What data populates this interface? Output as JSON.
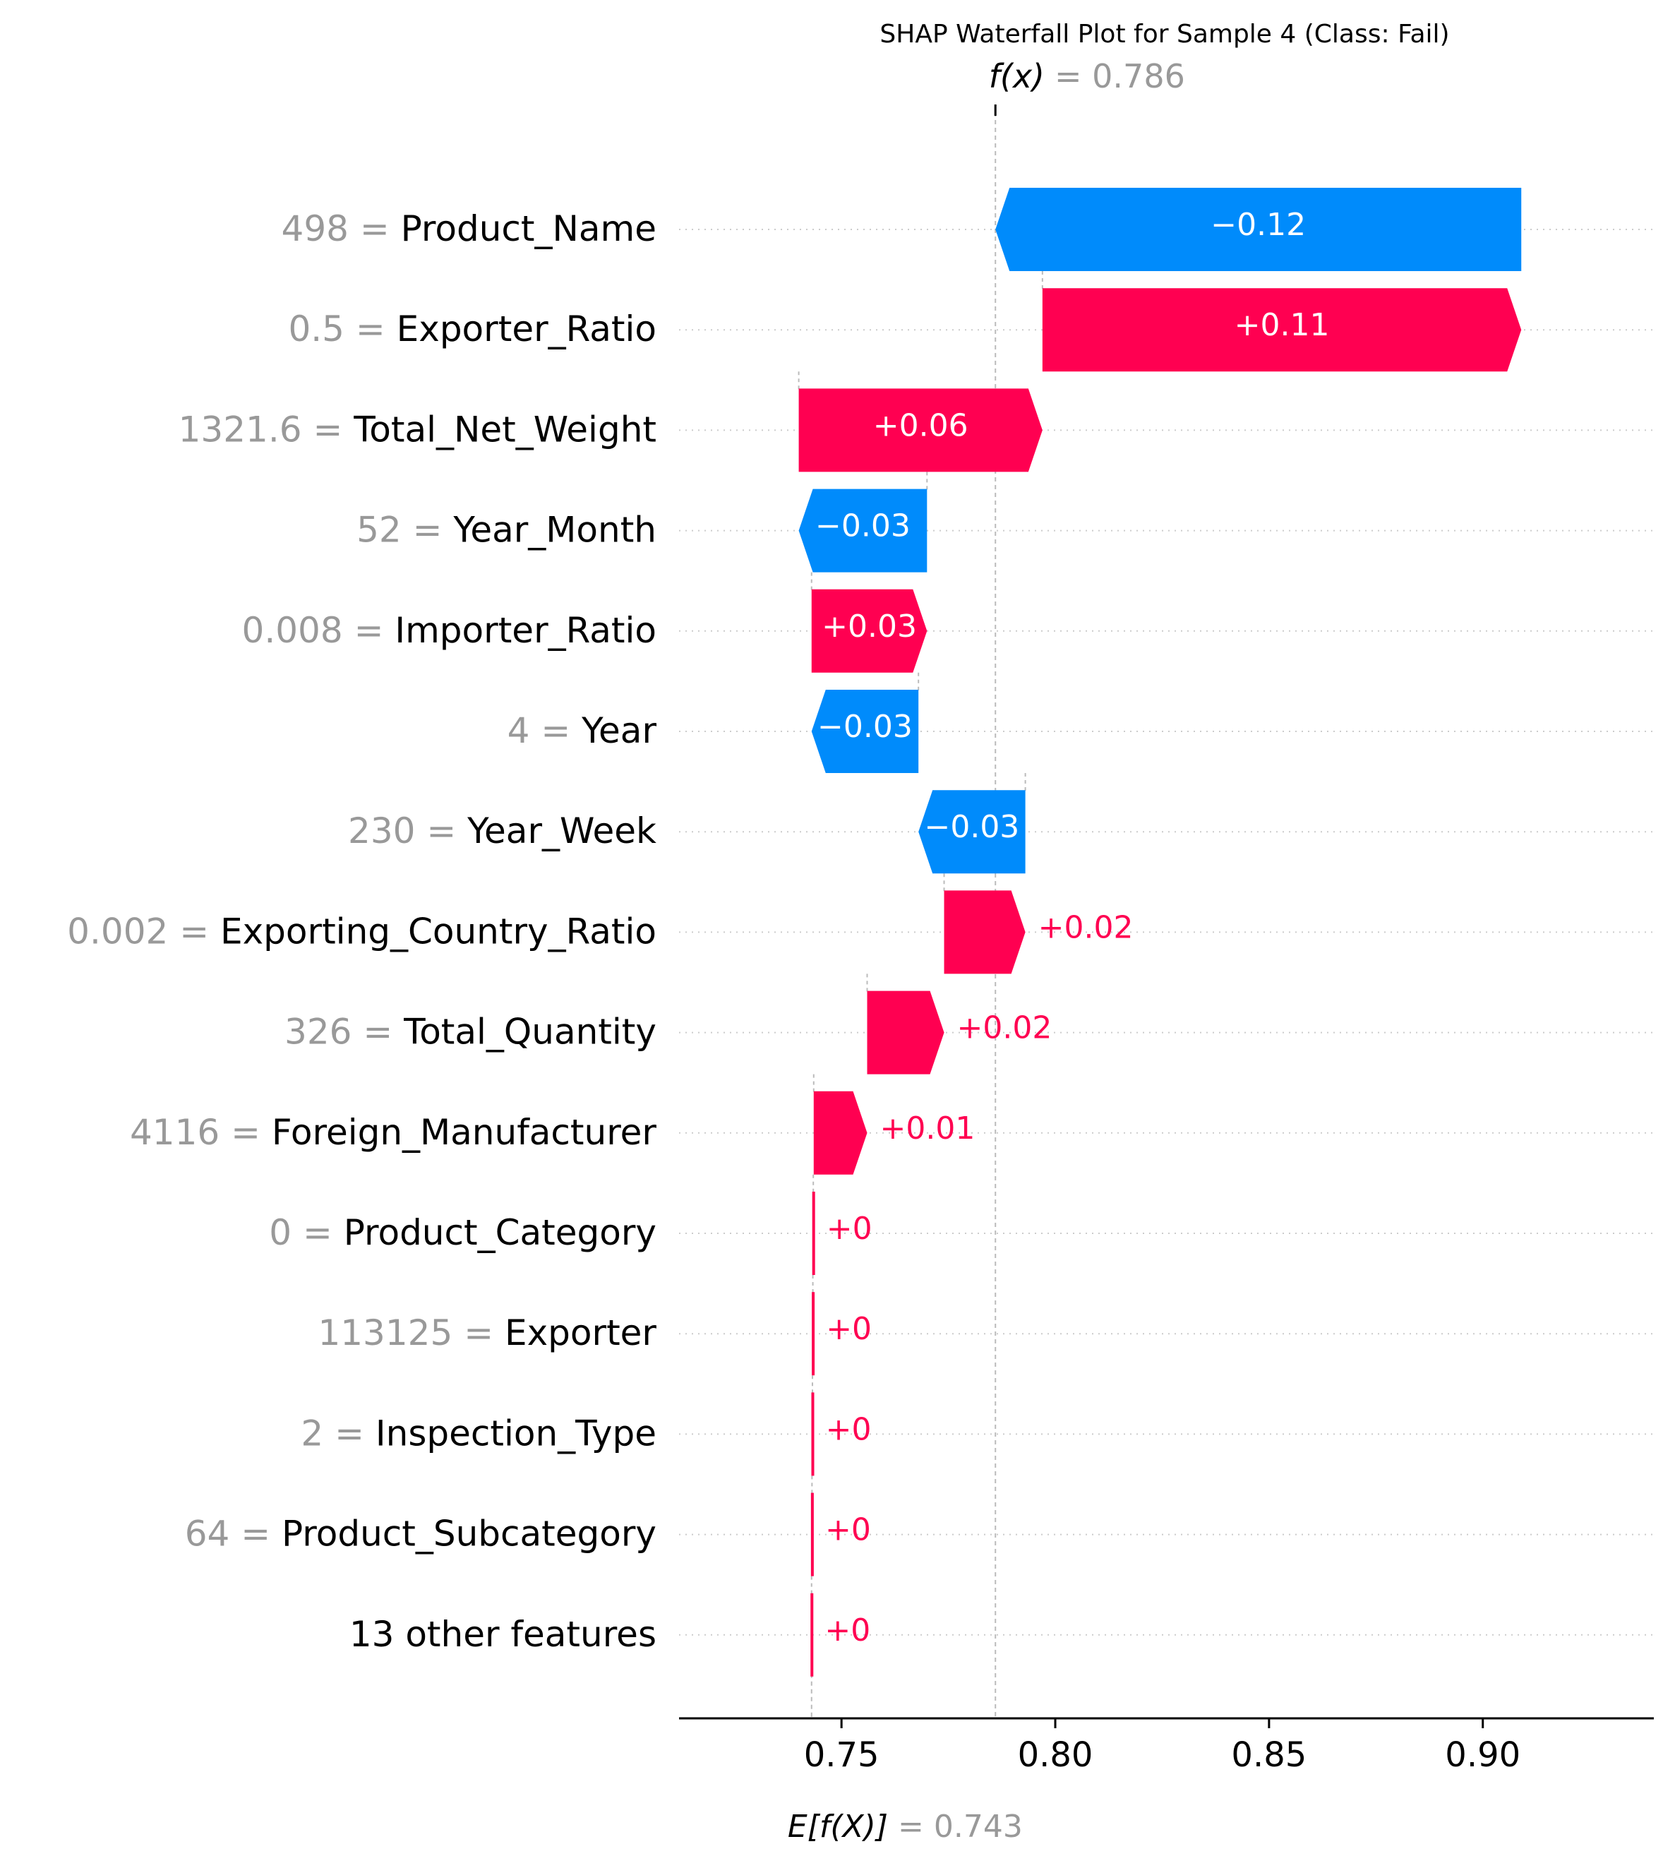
{
  "chart_data": {
    "type": "waterfall",
    "title": "SHAP Waterfall Plot for Sample 4 (Class: Fail)",
    "fx_label": "f(x)",
    "fx_value": "= 0.786",
    "fx": 0.786,
    "efx_label": "E[f(X)]",
    "efx_value": "= 0.743",
    "base_value": 0.743,
    "xlim": [
      0.712,
      0.94
    ],
    "xticks": [
      0.75,
      0.8,
      0.85,
      0.9
    ],
    "xtick_labels": [
      "0.75",
      "0.80",
      "0.85",
      "0.90"
    ],
    "colors": {
      "positive": "#ff0051",
      "negative": "#008bfb",
      "value_text": "#999999",
      "label_text": "#000000"
    },
    "features": [
      {
        "value": "498",
        "name": "Product_Name",
        "start": 0.909,
        "end": 0.786,
        "text": "−0.12"
      },
      {
        "value": "0.5",
        "name": "Exporter_Ratio",
        "start": 0.797,
        "end": 0.909,
        "text": "+0.11"
      },
      {
        "value": "1321.6",
        "name": "Total_Net_Weight",
        "start": 0.74,
        "end": 0.797,
        "text": "+0.06"
      },
      {
        "value": "52",
        "name": "Year_Month",
        "start": 0.77,
        "end": 0.74,
        "text": "−0.03"
      },
      {
        "value": "0.008",
        "name": "Importer_Ratio",
        "start": 0.743,
        "end": 0.77,
        "text": "+0.03"
      },
      {
        "value": "4",
        "name": "Year",
        "start": 0.768,
        "end": 0.743,
        "text": "−0.03"
      },
      {
        "value": "230",
        "name": "Year_Week",
        "start": 0.793,
        "end": 0.768,
        "text": "−0.03"
      },
      {
        "value": "0.002",
        "name": "Exporting_Country_Ratio",
        "start": 0.774,
        "end": 0.793,
        "text": "+0.02"
      },
      {
        "value": "326",
        "name": "Total_Quantity",
        "start": 0.756,
        "end": 0.774,
        "text": "+0.02"
      },
      {
        "value": "4116",
        "name": "Foreign_Manufacturer",
        "start": 0.7435,
        "end": 0.756,
        "text": "+0.01"
      },
      {
        "value": "0",
        "name": "Product_Category",
        "start": 0.7434,
        "end": 0.7435,
        "text": "+0"
      },
      {
        "value": "113125",
        "name": "Exporter",
        "start": 0.7433,
        "end": 0.7434,
        "text": "+0"
      },
      {
        "value": "2",
        "name": "Inspection_Type",
        "start": 0.7432,
        "end": 0.7433,
        "text": "+0"
      },
      {
        "value": "64",
        "name": "Product_Subcategory",
        "start": 0.7431,
        "end": 0.7432,
        "text": "+0"
      },
      {
        "value": "",
        "name": "13 other features",
        "start": 0.743,
        "end": 0.7431,
        "text": "+0"
      }
    ]
  }
}
